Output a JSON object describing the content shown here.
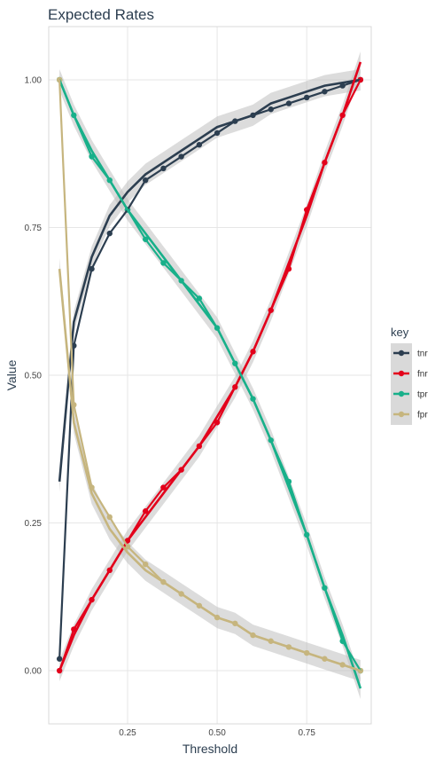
{
  "chart_data": {
    "type": "scatter",
    "title": "Expected Rates",
    "xlabel": "Threshold",
    "ylabel": "Value",
    "xlim": [
      0.03,
      0.93
    ],
    "ylim": [
      -0.09,
      1.09
    ],
    "x_ticks": [
      0.25,
      0.5,
      0.75
    ],
    "x_tick_labels": [
      "0.25",
      "0.50",
      "0.75"
    ],
    "y_ticks": [
      0,
      0.25,
      0.5,
      0.75,
      1.0
    ],
    "y_tick_labels": [
      "0.00",
      "0.25",
      "0.50",
      "0.75",
      "1.00"
    ],
    "grid": true,
    "legend": {
      "title": "key",
      "position": "right"
    },
    "x": [
      0.06,
      0.1,
      0.15,
      0.2,
      0.25,
      0.3,
      0.35,
      0.4,
      0.45,
      0.5,
      0.55,
      0.6,
      0.65,
      0.7,
      0.75,
      0.8,
      0.85,
      0.9
    ],
    "series": [
      {
        "name": "tnr",
        "color": "#2c3e50",
        "values": [
          0.02,
          0.55,
          0.68,
          0.74,
          0.78,
          0.83,
          0.85,
          0.87,
          0.89,
          0.91,
          0.93,
          0.94,
          0.95,
          0.96,
          0.97,
          0.98,
          0.99,
          1.0
        ],
        "smooth": [
          0.32,
          0.59,
          0.7,
          0.77,
          0.81,
          0.84,
          0.86,
          0.88,
          0.9,
          0.92,
          0.93,
          0.94,
          0.96,
          0.97,
          0.98,
          0.99,
          0.995,
          1.0
        ]
      },
      {
        "name": "fnr",
        "color": "#e3001b",
        "values": [
          0.0,
          0.07,
          0.12,
          0.17,
          0.22,
          0.27,
          0.31,
          0.34,
          0.38,
          0.42,
          0.48,
          0.54,
          0.61,
          0.68,
          0.78,
          0.86,
          0.94,
          1.0
        ],
        "smooth": [
          0.0,
          0.06,
          0.12,
          0.17,
          0.22,
          0.26,
          0.3,
          0.34,
          0.38,
          0.43,
          0.48,
          0.54,
          0.61,
          0.69,
          0.77,
          0.86,
          0.94,
          1.03
        ]
      },
      {
        "name": "tpr",
        "color": "#18b08a",
        "values": [
          1.0,
          0.94,
          0.87,
          0.83,
          0.78,
          0.73,
          0.69,
          0.66,
          0.63,
          0.58,
          0.52,
          0.46,
          0.39,
          0.32,
          0.23,
          0.14,
          0.05,
          0.0
        ],
        "smooth": [
          1.0,
          0.94,
          0.88,
          0.83,
          0.78,
          0.74,
          0.7,
          0.66,
          0.62,
          0.58,
          0.52,
          0.46,
          0.39,
          0.31,
          0.23,
          0.14,
          0.06,
          -0.03
        ]
      },
      {
        "name": "fpr",
        "color": "#c6b57e",
        "values": [
          1.0,
          0.45,
          0.31,
          0.26,
          0.21,
          0.18,
          0.15,
          0.13,
          0.11,
          0.09,
          0.08,
          0.06,
          0.05,
          0.04,
          0.03,
          0.02,
          0.01,
          0.0
        ],
        "smooth": [
          0.68,
          0.42,
          0.3,
          0.24,
          0.2,
          0.17,
          0.15,
          0.13,
          0.11,
          0.09,
          0.08,
          0.06,
          0.05,
          0.04,
          0.03,
          0.02,
          0.01,
          0.0
        ]
      }
    ]
  }
}
